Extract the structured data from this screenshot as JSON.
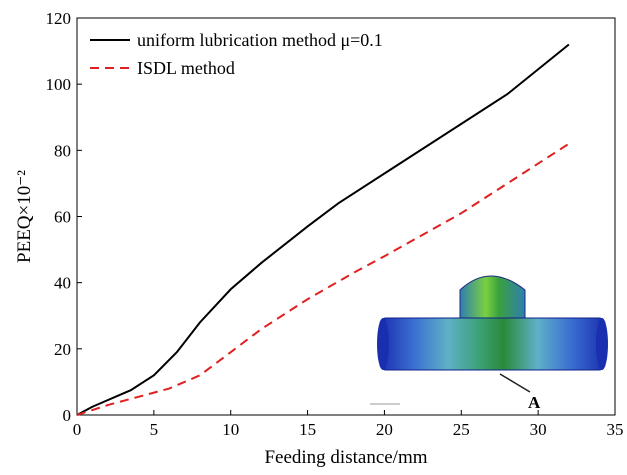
{
  "chart_data": {
    "type": "line",
    "x_label": "Feeding distance/mm",
    "y_label": "PEEQ×10⁻²",
    "annotation": "A",
    "xlim": [
      0,
      35
    ],
    "xticks": [
      0,
      5,
      10,
      15,
      20,
      25,
      30,
      35
    ],
    "ylim": [
      0,
      120
    ],
    "yticks": [
      0,
      20,
      40,
      60,
      80,
      100,
      120
    ],
    "legend": "upper left",
    "series": [
      {
        "name": "uniform lubrication method μ=0.1",
        "color": "#000000",
        "dash": false,
        "x": [
          0,
          1,
          2,
          3.5,
          5,
          6.5,
          8,
          10,
          12,
          15,
          17,
          20,
          25,
          28,
          32
        ],
        "values": [
          0,
          2.5,
          4.5,
          7.5,
          12,
          19,
          28,
          38,
          46,
          57,
          64,
          73,
          88,
          97,
          112
        ]
      },
      {
        "name": "ISDL method",
        "color": "#e02020",
        "dash": true,
        "x": [
          0,
          2,
          4,
          6,
          8,
          10,
          12,
          15,
          18,
          20,
          25,
          28,
          32
        ],
        "values": [
          0,
          3,
          5.5,
          8,
          12,
          19,
          26,
          35,
          43,
          48,
          61,
          70,
          82
        ]
      }
    ]
  }
}
